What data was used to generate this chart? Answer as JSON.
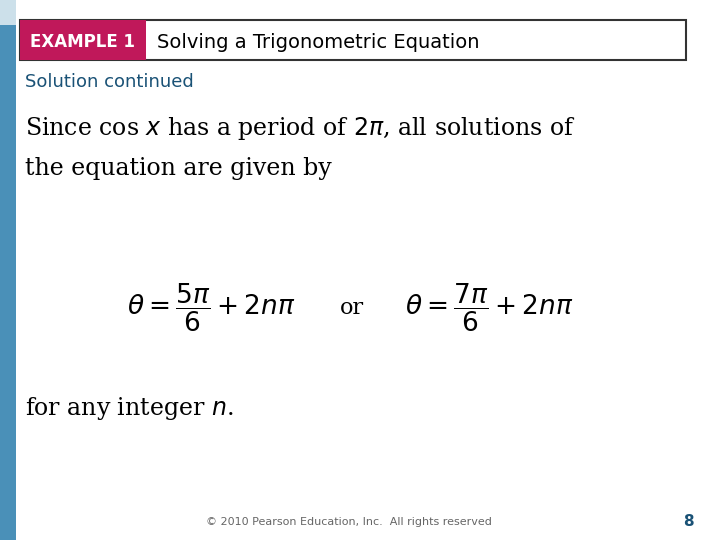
{
  "title_box_label": "EXAMPLE 1",
  "title_box_bg": "#c0185a",
  "title_text": "Solving a Trigonometric Equation",
  "title_text_color": "#000000",
  "header_border_color": "#333333",
  "solution_continued": "Solution continued",
  "line1": "Since cos $x$ has a period of $2\\pi$, all solutions of",
  "line2": "the equation are given by",
  "eq1": "$\\theta = \\dfrac{5\\pi}{6} + 2n\\pi$",
  "or_text": "or",
  "eq2": "$\\theta = \\dfrac{7\\pi}{6} + 2n\\pi$",
  "line_final": "for any integer $n$.",
  "footer_text": "© 2010 Pearson Education, Inc.  All rights reserved",
  "page_number": "8",
  "bg_color": "#ffffff",
  "left_bar_color": "#4a90b8",
  "left_bar_light": "#cce0ea"
}
